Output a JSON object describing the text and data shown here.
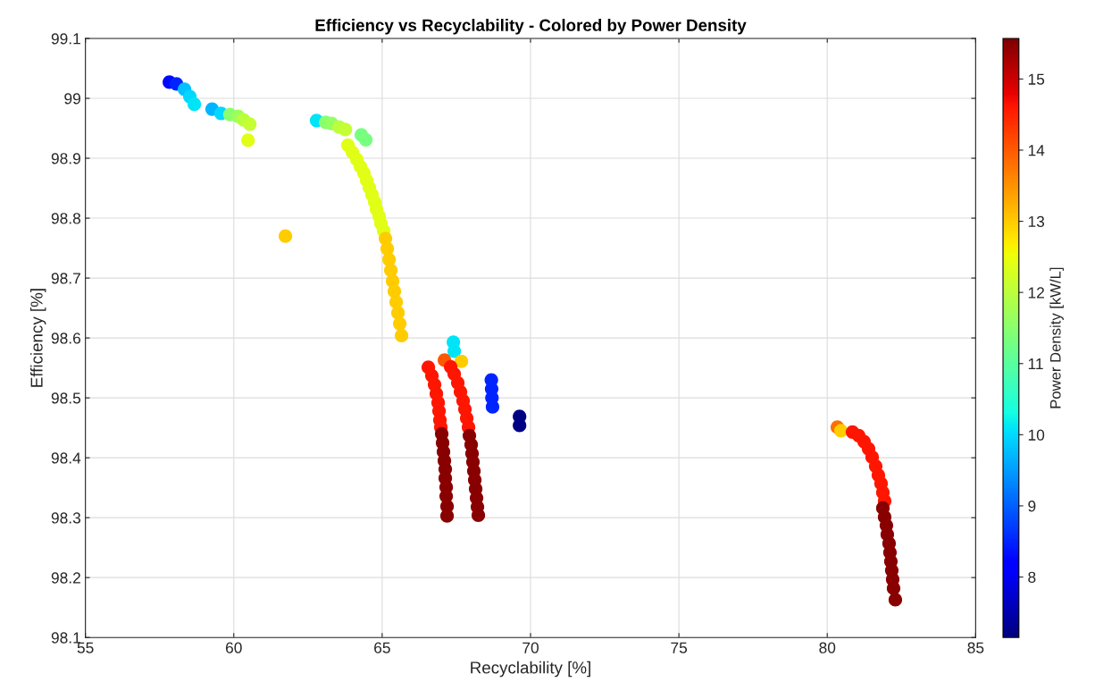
{
  "chart_data": {
    "type": "scatter",
    "title": "Efficiency vs Recyclability - Colored by Power Density",
    "xlabel": "Recyclability [%]",
    "ylabel": "Efficiency [%]",
    "clabel": "Power Density [kW/L]",
    "x": [
      57.83,
      58.07,
      58.34,
      58.52,
      58.67,
      59.27,
      59.57,
      59.87,
      60.15,
      60.33,
      60.54,
      60.48,
      61.74,
      62.79,
      63.1,
      63.3,
      63.55,
      63.76,
      64.3,
      64.45,
      63.847,
      63.998,
      64.148,
      64.269,
      64.389,
      64.479,
      64.57,
      64.66,
      64.75,
      64.81,
      64.901,
      64.961,
      65.051,
      65.111,
      65.171,
      65.232,
      65.292,
      65.352,
      65.412,
      65.472,
      65.533,
      65.593,
      65.653,
      67.4,
      67.43,
      67.67,
      67.1,
      66.556,
      66.676,
      66.766,
      66.827,
      66.887,
      66.917,
      66.947,
      66.977,
      67.007,
      67.037,
      67.067,
      67.097,
      67.127,
      67.127,
      67.158,
      67.158,
      67.188,
      67.188,
      67.308,
      67.428,
      67.549,
      67.639,
      67.729,
      67.789,
      67.85,
      67.91,
      67.94,
      68.0,
      68.03,
      68.06,
      68.091,
      68.121,
      68.151,
      68.181,
      68.211,
      68.241,
      68.68,
      68.69,
      68.7,
      68.72,
      69.63,
      69.63,
      80.34,
      80.46,
      80.85,
      81.06,
      81.241,
      81.392,
      81.512,
      81.632,
      81.722,
      81.813,
      81.873,
      81.933,
      81.873,
      81.933,
      81.993,
      82.023,
      82.083,
      82.113,
      82.143,
      82.174,
      82.204,
      82.234,
      82.294
    ],
    "values": [
      99.027,
      99.024,
      99.015,
      99.003,
      98.99,
      98.982,
      98.975,
      98.973,
      98.97,
      98.964,
      98.957,
      98.93,
      98.77,
      98.963,
      98.96,
      98.958,
      98.952,
      98.948,
      98.939,
      98.931,
      98.922,
      98.91,
      98.898,
      98.886,
      98.875,
      98.863,
      98.851,
      98.839,
      98.827,
      98.815,
      98.803,
      98.791,
      98.779,
      98.766,
      98.749,
      98.731,
      98.713,
      98.695,
      98.678,
      98.66,
      98.642,
      98.624,
      98.604,
      98.593,
      98.578,
      98.561,
      98.563,
      98.551,
      98.537,
      98.522,
      98.507,
      98.492,
      98.478,
      98.463,
      98.451,
      98.44,
      98.425,
      98.41,
      98.395,
      98.381,
      98.366,
      98.351,
      98.336,
      98.319,
      98.303,
      98.552,
      98.54,
      98.525,
      98.51,
      98.495,
      98.481,
      98.466,
      98.451,
      98.437,
      98.422,
      98.407,
      98.393,
      98.378,
      98.363,
      98.348,
      98.333,
      98.318,
      98.304,
      98.53,
      98.515,
      98.5,
      98.485,
      98.469,
      98.454,
      98.451,
      98.445,
      98.443,
      98.437,
      98.427,
      98.415,
      98.401,
      98.386,
      98.371,
      98.357,
      98.342,
      98.328,
      98.316,
      98.301,
      98.287,
      98.272,
      98.257,
      98.242,
      98.227,
      98.212,
      98.197,
      98.182,
      98.163
    ],
    "cvalues": [
      8.3,
      8.5,
      9.8,
      10.0,
      10.1,
      9.7,
      10.0,
      11.5,
      11.7,
      12.0,
      12.1,
      12.4,
      13.0,
      10.1,
      11.5,
      11.6,
      12.0,
      12.1,
      11.3,
      11.3,
      12.4,
      12.4,
      12.4,
      12.4,
      12.4,
      12.4,
      12.4,
      12.4,
      12.4,
      12.4,
      12.4,
      12.4,
      12.4,
      13.0,
      13.0,
      13.0,
      13.0,
      13.0,
      13.0,
      13.0,
      13.0,
      13.0,
      13.0,
      10.1,
      10.1,
      13.0,
      14.0,
      14.6,
      14.6,
      14.6,
      14.6,
      14.6,
      14.6,
      14.6,
      14.6,
      15.5,
      15.5,
      15.5,
      15.5,
      15.5,
      15.5,
      15.5,
      15.5,
      15.5,
      15.5,
      14.6,
      14.6,
      14.6,
      14.6,
      14.6,
      14.6,
      14.6,
      14.6,
      15.5,
      15.5,
      15.5,
      15.5,
      15.5,
      15.5,
      15.5,
      15.5,
      15.5,
      15.5,
      8.5,
      8.5,
      8.5,
      8.5,
      7.2,
      7.2,
      13.8,
      13.0,
      14.6,
      14.6,
      14.6,
      14.6,
      14.6,
      14.6,
      14.6,
      14.6,
      14.6,
      14.6,
      15.5,
      15.5,
      15.5,
      15.5,
      15.5,
      15.5,
      15.5,
      15.5,
      15.5,
      15.5,
      15.5
    ],
    "clim": [
      7.15,
      15.57
    ],
    "cticks": [
      8,
      9,
      10,
      11,
      12,
      13,
      14,
      15
    ],
    "xlim": [
      55,
      85
    ],
    "xticks": [
      55,
      60,
      65,
      70,
      75,
      80,
      85
    ],
    "ylim": [
      98.1,
      99.1
    ],
    "yticks": [
      98.1,
      98.2,
      98.3,
      98.4,
      98.5,
      98.6,
      98.7,
      98.8,
      98.9,
      99,
      99.1
    ],
    "grid": true,
    "marker": "circle"
  }
}
